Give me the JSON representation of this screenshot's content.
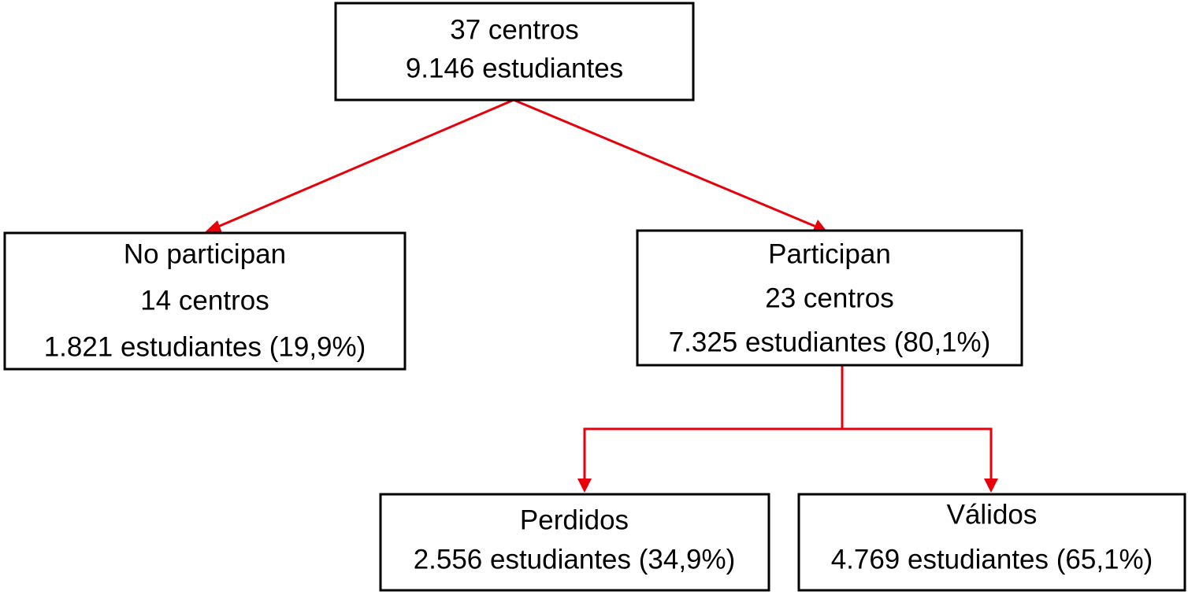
{
  "nodes": [
    {
      "lines": [
        "37 centros",
        "9.146 estudiantes"
      ]
    },
    {
      "lines": [
        "No participan",
        "14 centros",
        "1.821 estudiantes (19,9%)"
      ]
    },
    {
      "lines": [
        "Participan",
        "23 centros",
        "7.325 estudiantes (80,1%)"
      ]
    },
    {
      "lines": [
        "Perdidos",
        "2.556 estudiantes (34,9%)"
      ]
    },
    {
      "lines": [
        "Válidos",
        "4.769 estudiantes (65,1%)"
      ]
    }
  ]
}
